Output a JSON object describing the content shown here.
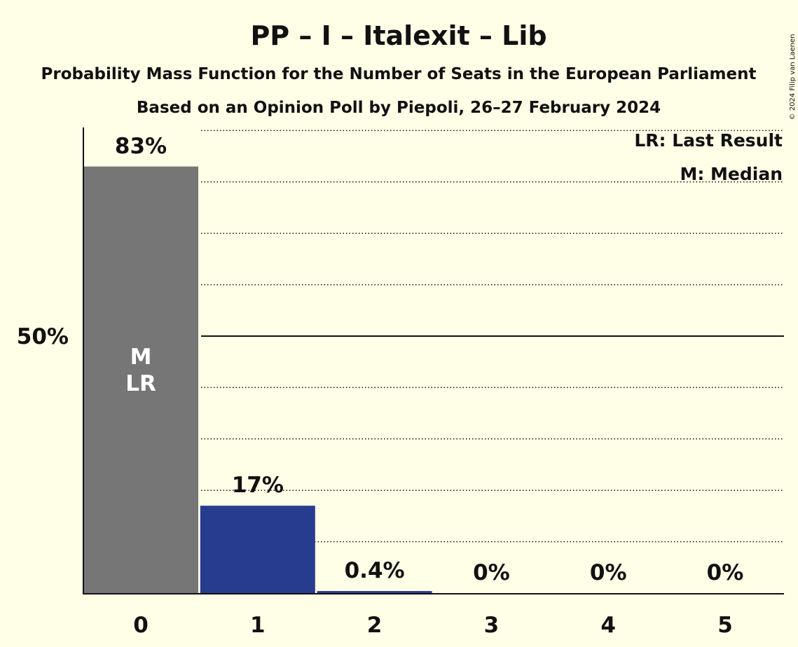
{
  "chart_data": {
    "type": "bar",
    "title": "PP – I – Italexit – Lib",
    "subtitle": "Probability Mass Function for the Number of Seats in the European Parliament",
    "subtitle2": "Based on an Opinion Poll by Piepoli, 26–27 February 2024",
    "categories": [
      "0",
      "1",
      "2",
      "3",
      "4",
      "5"
    ],
    "values": [
      83,
      17,
      0.4,
      0,
      0,
      0
    ],
    "value_labels": [
      "83%",
      "17%",
      "0.4%",
      "0%",
      "0%",
      "0%"
    ],
    "y_tick_label": "50%",
    "y_tick_value": 50,
    "ylim": [
      0,
      90
    ],
    "grid_step": 10,
    "bar_markers": [
      {
        "index": 0,
        "lines": [
          "M",
          "LR"
        ]
      }
    ],
    "legend": [
      "LR: Last Result",
      "M: Median"
    ],
    "legend_position": "top-right",
    "copyright": "© 2024 Filip van Laenen"
  },
  "colors": {
    "background": "#FFFEE6",
    "bar_median": "#767676",
    "bar_party": "#283C8F",
    "text": "#111111",
    "marker_text": "#FFFFFF"
  }
}
